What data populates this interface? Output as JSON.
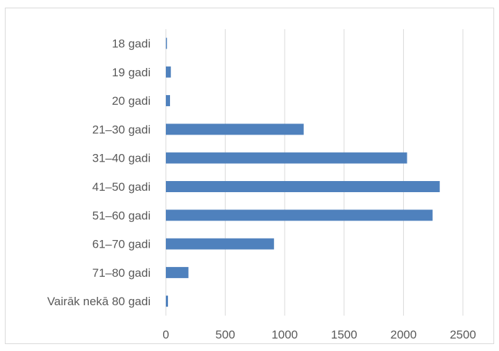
{
  "chart_data": {
    "type": "bar",
    "orientation": "horizontal",
    "categories": [
      "18 gadi",
      "19 gadi",
      "20 gadi",
      "21–30 gadi",
      "31–40 gadi",
      "41–50 gadi",
      "51–60 gadi",
      "61–70 gadi",
      "71–80 gadi",
      "Vairāk nekā 80 gadi"
    ],
    "values": [
      8,
      42,
      35,
      1160,
      2030,
      2305,
      2245,
      910,
      190,
      18
    ],
    "xlim": [
      0,
      2600
    ],
    "xticks": [
      "0",
      "500",
      "1000",
      "1500",
      "2000",
      "2500"
    ],
    "xtick_values": [
      0,
      500,
      1000,
      1500,
      2000,
      2500
    ],
    "grid": "vertical",
    "legend": "none",
    "title": "",
    "xlabel": "",
    "ylabel": "",
    "colors": {
      "bar": "#4f81bd",
      "grid": "#d9d9d9",
      "text": "#595959",
      "frame": "#d9d9d9"
    }
  }
}
